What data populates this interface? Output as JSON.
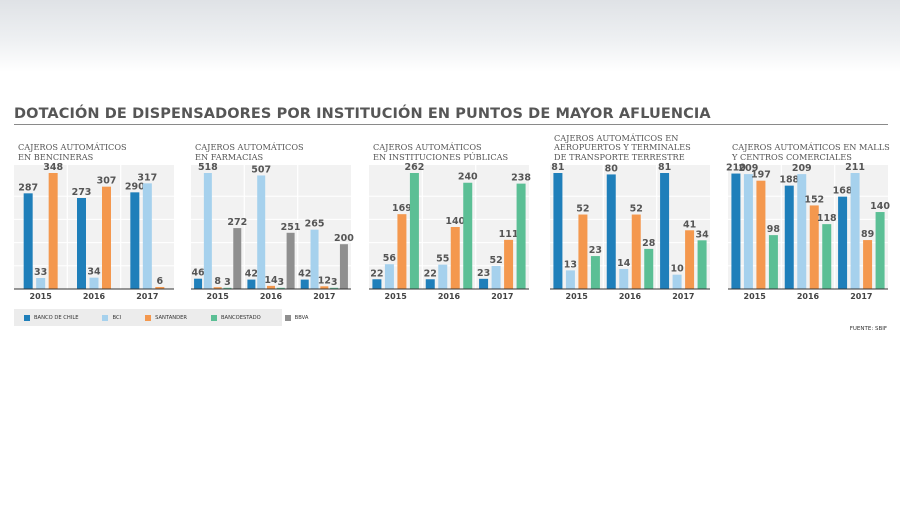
{
  "title": "DOTACIÓN DE DISPENSADORES POR INSTITUCIÓN EN PUNTOS DE MAYOR AFLUENCIA",
  "source": "FUENTE: SBIF",
  "colors": {
    "BANCO DE CHILE": "#1f7fba",
    "BCI": "#a6d1ed",
    "SANTANDER": "#f4984e",
    "BANCOESTADO": "#5bbf95",
    "BBVA": "#8f8f8f"
  },
  "legend": [
    {
      "label": "BANCO DE CHILE",
      "color": "#1f7fba"
    },
    {
      "label": "BCI",
      "color": "#a6d1ed"
    },
    {
      "label": "SANTANDER",
      "color": "#f4984e"
    },
    {
      "label": "BANCOESTADO",
      "color": "#5bbf95"
    },
    {
      "label": "BBVA",
      "color": "#8f8f8f"
    }
  ],
  "panels": [
    {
      "title": "CAJEROS AUTOMÁTICOS\nEN BENCINERAS"
    },
    {
      "title": "CAJEROS AUTOMÁTICOS\nEN FARMACIAS"
    },
    {
      "title": "CAJEROS AUTOMÁTICOS\nEN INSTITUCIONES PÚBLICAS"
    },
    {
      "title": "CAJEROS AUTOMÁTICOS EN\nAEROPUERTOS Y TERMINALES\nDE TRANSPORTE TERRESTRE"
    },
    {
      "title": "CAJEROS AUTOMÁTICOS EN MALLS\nY CENTROS COMERCIALES"
    }
  ],
  "chart_data": [
    {
      "type": "bar",
      "title": "CAJEROS AUTOMÁTICOS EN BENCINERAS",
      "categories": [
        "2015",
        "2016",
        "2017"
      ],
      "ylim": [
        0,
        348
      ],
      "series": [
        {
          "name": "BANCO DE CHILE",
          "values": [
            287,
            273,
            290
          ]
        },
        {
          "name": "BCI",
          "values": [
            33,
            34,
            317
          ]
        },
        {
          "name": "SANTANDER",
          "values": [
            348,
            307,
            6
          ]
        }
      ]
    },
    {
      "type": "bar",
      "title": "CAJEROS AUTOMÁTICOS EN FARMACIAS",
      "categories": [
        "2015",
        "2016",
        "2017"
      ],
      "ylim": [
        0,
        518
      ],
      "series": [
        {
          "name": "BANCO DE CHILE",
          "values": [
            46,
            42,
            42
          ]
        },
        {
          "name": "BCI",
          "values": [
            518,
            507,
            265
          ]
        },
        {
          "name": "SANTANDER",
          "values": [
            8,
            14,
            12
          ]
        },
        {
          "name": "BANCOESTADO",
          "values": [
            3,
            3,
            3
          ]
        },
        {
          "name": "BBVA",
          "values": [
            272,
            251,
            200
          ]
        }
      ]
    },
    {
      "type": "bar",
      "title": "CAJEROS AUTOMÁTICOS EN INSTITUCIONES PÚBLICAS",
      "categories": [
        "2015",
        "2016",
        "2017"
      ],
      "ylim": [
        0,
        262
      ],
      "series": [
        {
          "name": "BANCO DE CHILE",
          "values": [
            22,
            22,
            23
          ]
        },
        {
          "name": "BCI",
          "values": [
            56,
            55,
            52
          ]
        },
        {
          "name": "SANTANDER",
          "values": [
            169,
            140,
            111
          ]
        },
        {
          "name": "BANCOESTADO",
          "values": [
            262,
            240,
            238
          ]
        }
      ]
    },
    {
      "type": "bar",
      "title": "CAJEROS AUTOMÁTICOS EN AEROPUERTOS Y TERMINALES DE TRANSPORTE TERRESTRE",
      "categories": [
        "2015",
        "2016",
        "2017"
      ],
      "ylim": [
        0,
        81
      ],
      "series": [
        {
          "name": "BANCO DE CHILE",
          "values": [
            81,
            80,
            81
          ]
        },
        {
          "name": "BCI",
          "values": [
            13,
            14,
            10
          ]
        },
        {
          "name": "SANTANDER",
          "values": [
            52,
            52,
            41
          ]
        },
        {
          "name": "BANCOESTADO",
          "values": [
            23,
            28,
            34
          ]
        }
      ]
    },
    {
      "type": "bar",
      "title": "CAJEROS AUTOMÁTICOS EN MALLS Y CENTROS COMERCIALES",
      "categories": [
        "2015",
        "2016",
        "2017"
      ],
      "ylim": [
        0,
        211
      ],
      "series": [
        {
          "name": "BANCO DE CHILE",
          "values": [
            210,
            188,
            168
          ]
        },
        {
          "name": "BCI",
          "values": [
            209,
            209,
            211
          ]
        },
        {
          "name": "SANTANDER",
          "values": [
            197,
            152,
            89
          ]
        },
        {
          "name": "BANCOESTADO",
          "values": [
            98,
            118,
            140
          ]
        }
      ]
    }
  ]
}
